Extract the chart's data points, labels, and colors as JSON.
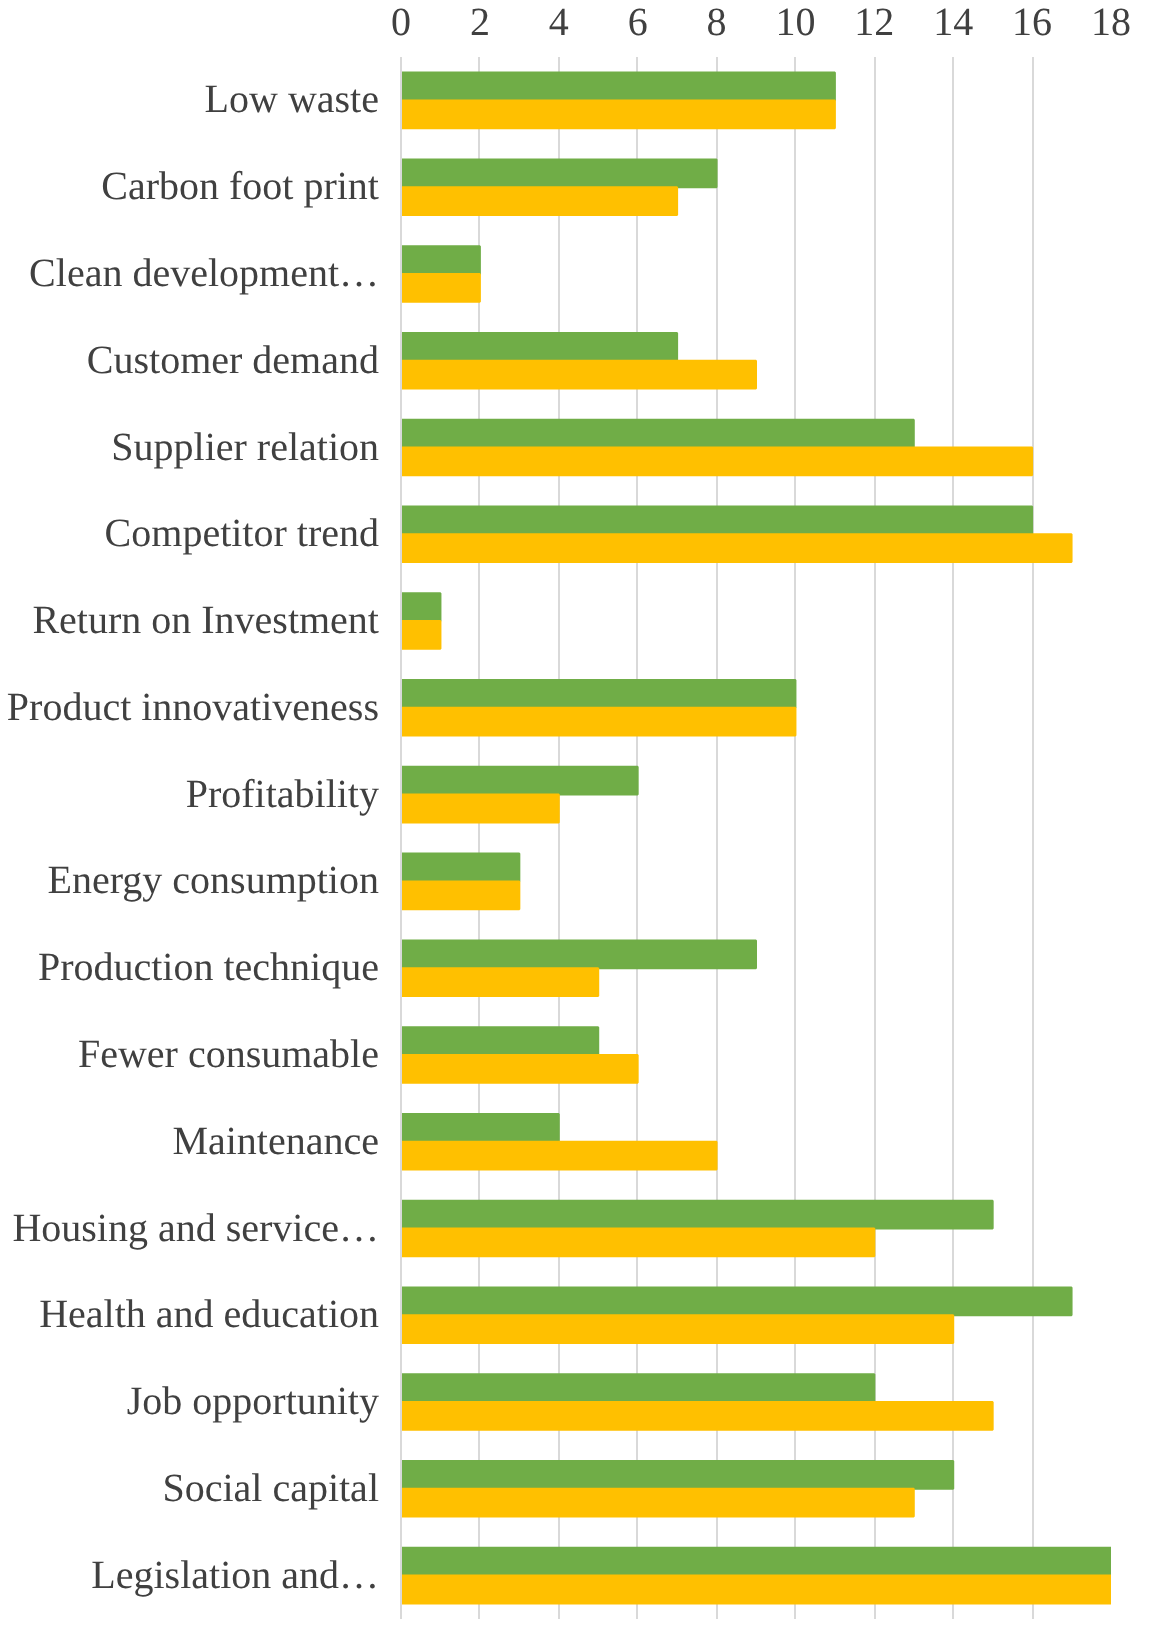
{
  "chart_data": {
    "type": "bar",
    "orientation": "horizontal",
    "categories": [
      "Low waste",
      "Carbon foot print",
      "Clean development…",
      "Customer demand",
      "Supplier relation",
      "Competitor trend",
      "Return on Investment",
      "Product innovativeness",
      "Profitability",
      "Energy consumption",
      "Production technique",
      "Fewer consumable",
      "Maintenance",
      "Housing and service…",
      "Health and education",
      "Job opportunity",
      "Social capital",
      "Legislation and…"
    ],
    "series": [
      {
        "color": "#70ad47",
        "values": [
          11,
          8,
          2,
          7,
          13,
          16,
          1,
          10,
          6,
          3,
          9,
          5,
          4,
          15,
          17,
          12,
          14,
          18
        ]
      },
      {
        "color": "#ffc000",
        "values": [
          11,
          7,
          2,
          9,
          16,
          17,
          1,
          10,
          4,
          3,
          5,
          6,
          8,
          12,
          14,
          15,
          13,
          18
        ]
      }
    ],
    "xlim": [
      0,
      18
    ],
    "xticks": [
      0,
      2,
      4,
      6,
      8,
      10,
      12,
      14,
      16,
      18
    ],
    "grid": "x"
  }
}
